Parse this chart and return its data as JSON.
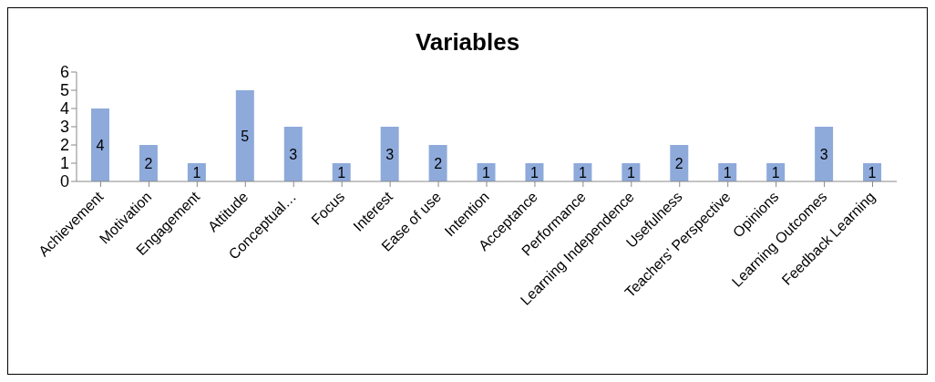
{
  "chart_data": {
    "type": "bar",
    "title": "Variables",
    "categories": [
      "Achievement",
      "Motivation",
      "Engagement",
      "Attitude",
      "Conceptual…",
      "Focus",
      "Interest",
      "Ease of use",
      "Intention",
      "Acceptance",
      "Performance",
      "Learning Independence",
      "Usefulness",
      "Teachers' Perspective",
      "Opinions",
      "Learning Outcomes",
      "Feedback Learning"
    ],
    "values": [
      4,
      2,
      1,
      5,
      3,
      1,
      3,
      2,
      1,
      1,
      1,
      1,
      2,
      1,
      1,
      3,
      1
    ],
    "color": "#8eaadb",
    "ylim": [
      0,
      6
    ],
    "yticks": [
      0,
      1,
      2,
      3,
      4,
      5,
      6
    ],
    "data_labels": true
  }
}
